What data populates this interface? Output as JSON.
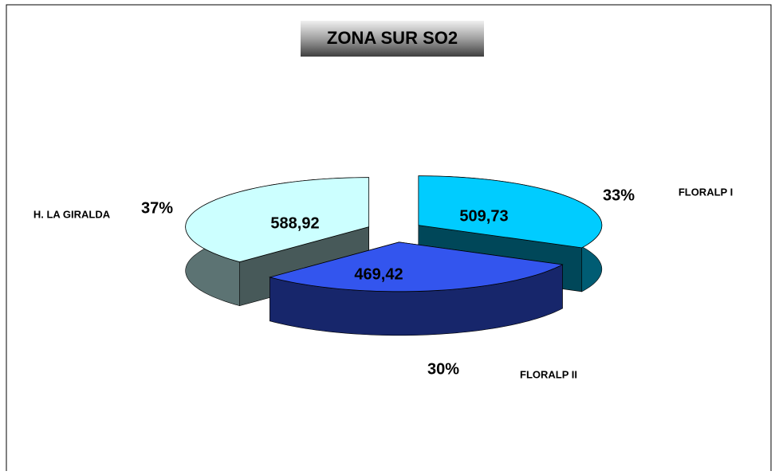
{
  "chart_data": {
    "type": "pie3d",
    "title": "ZONA SUR SO2",
    "categories": [
      "H. LA GIRALDA",
      "FLORALP I",
      "FLORALP II"
    ],
    "values": [
      588.92,
      509.73,
      469.42
    ],
    "value_labels": [
      "588,92",
      "509,73",
      "469,42"
    ],
    "percents": [
      37,
      33,
      30
    ],
    "percent_labels": [
      "37%",
      "33%",
      "30%"
    ],
    "colors": [
      "#ccffff",
      "#00ccff",
      "#3355ee"
    ]
  }
}
